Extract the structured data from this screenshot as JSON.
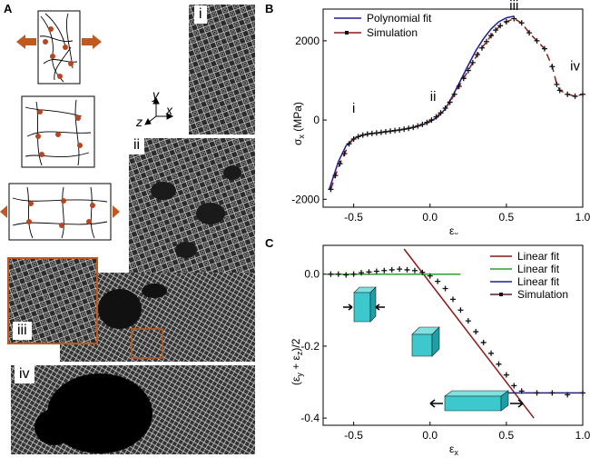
{
  "panels": {
    "a": "A",
    "b": "B",
    "c": "C"
  },
  "panel_a": {
    "stage_labels": [
      "i",
      "ii",
      "iii",
      "iv"
    ],
    "axes_triad": {
      "y": "y",
      "z": "z",
      "x": "x"
    }
  },
  "chart_data": [
    {
      "id": "B",
      "type": "line",
      "ylabel": "σ",
      "ylabel_sub": "x",
      "ylabel_unit": "(MPa)",
      "xlabel": "ε",
      "xlabel_sub": "x",
      "xlim": [
        -0.7,
        1.0
      ],
      "ylim": [
        -2200,
        2800
      ],
      "xticks": [
        "-0.5",
        "0.0",
        "0.5",
        "1.0"
      ],
      "xtick_values": [
        -0.5,
        0.0,
        0.5,
        1.0
      ],
      "yticks": [
        "-2000",
        "0",
        "2000"
      ],
      "ytick_values": [
        -2000,
        0,
        2000
      ],
      "annotations": [
        {
          "text": "i",
          "x": -0.5,
          "y": 180
        },
        {
          "text": "ii",
          "x": 0.02,
          "y": 480
        },
        {
          "text": "iii",
          "x": 0.55,
          "y": 2780
        },
        {
          "text": "iv",
          "x": 0.95,
          "y": 1250
        }
      ],
      "legend": [
        "Polynomial fit",
        "Simulation"
      ],
      "colors": {
        "fit": "#1f1f8f",
        "sim": "#8b1a1a"
      },
      "series": [
        {
          "name": "Polynomial fit",
          "x": [
            -0.66,
            -0.6,
            -0.55,
            -0.5,
            -0.45,
            -0.4,
            -0.35,
            -0.3,
            -0.25,
            -0.2,
            -0.15,
            -0.1,
            -0.05,
            0.0,
            0.05,
            0.1,
            0.15,
            0.2,
            0.25,
            0.3,
            0.35,
            0.4,
            0.45,
            0.5,
            0.55
          ],
          "y": [
            -1750,
            -1050,
            -650,
            -470,
            -390,
            -350,
            -330,
            -300,
            -280,
            -250,
            -220,
            -180,
            -120,
            -40,
            80,
            280,
            620,
            1000,
            1380,
            1750,
            2050,
            2300,
            2480,
            2580,
            2620
          ]
        },
        {
          "name": "Simulation",
          "x": [
            -0.65,
            -0.62,
            -0.59,
            -0.56,
            -0.53,
            -0.5,
            -0.47,
            -0.44,
            -0.41,
            -0.38,
            -0.35,
            -0.32,
            -0.29,
            -0.26,
            -0.23,
            -0.2,
            -0.17,
            -0.14,
            -0.11,
            -0.08,
            -0.05,
            -0.02,
            0.01,
            0.04,
            0.07,
            0.1,
            0.13,
            0.16,
            0.19,
            0.22,
            0.25,
            0.28,
            0.31,
            0.34,
            0.37,
            0.4,
            0.43,
            0.46,
            0.5,
            0.55,
            0.6,
            0.65,
            0.7,
            0.75,
            0.8,
            0.83,
            0.85,
            0.9,
            0.95,
            1.0
          ],
          "y": [
            -1750,
            -1400,
            -1100,
            -850,
            -600,
            -480,
            -420,
            -380,
            -355,
            -340,
            -325,
            -310,
            -295,
            -280,
            -265,
            -250,
            -230,
            -210,
            -185,
            -150,
            -110,
            -60,
            0,
            80,
            180,
            300,
            450,
            650,
            850,
            1050,
            1250,
            1450,
            1650,
            1820,
            1980,
            2130,
            2270,
            2380,
            2480,
            2560,
            2450,
            2200,
            2000,
            1800,
            1350,
            900,
            750,
            650,
            600,
            650
          ]
        }
      ]
    },
    {
      "id": "C",
      "type": "line",
      "ylabel": "(ε",
      "ylabel_full": "(εy + εz)/2",
      "xlabel": "ε",
      "xlabel_sub": "x",
      "xlim": [
        -0.7,
        1.0
      ],
      "ylim": [
        -0.42,
        0.08
      ],
      "xticks": [
        "-0.5",
        "0.0",
        "0.5",
        "1.0"
      ],
      "xtick_values": [
        -0.5,
        0.0,
        0.5,
        1.0
      ],
      "yticks": [
        "0.0",
        "-0.2",
        "-0.4"
      ],
      "ytick_values": [
        0.0,
        -0.2,
        -0.4
      ],
      "legend": [
        "Linear fit",
        "Linear fit",
        "Linear fit",
        "Simulation"
      ],
      "colors": {
        "fit1": "#8b1a1a",
        "fit2": "#2ca02c",
        "fit3": "#1f1f8f",
        "sim": "#5a1a2a"
      },
      "series": [
        {
          "name": "Linear fit",
          "x": [
            -0.17,
            0.68
          ],
          "y": [
            0.07,
            -0.4
          ]
        },
        {
          "name": "Linear fit",
          "x": [
            -0.68,
            0.2
          ],
          "y": [
            0.0,
            0.0
          ]
        },
        {
          "name": "Linear fit",
          "x": [
            0.4,
            1.0
          ],
          "y": [
            -0.33,
            -0.33
          ]
        },
        {
          "name": "Simulation",
          "x": [
            -0.65,
            -0.6,
            -0.55,
            -0.5,
            -0.45,
            -0.4,
            -0.35,
            -0.3,
            -0.25,
            -0.2,
            -0.15,
            -0.1,
            -0.05,
            0.0,
            0.05,
            0.1,
            0.15,
            0.2,
            0.25,
            0.3,
            0.35,
            0.4,
            0.45,
            0.5,
            0.55,
            0.6,
            0.7,
            0.8,
            0.9,
            1.0
          ],
          "y": [
            0.0,
            0.0,
            -0.002,
            0.0,
            0.004,
            0.006,
            0.008,
            0.01,
            0.012,
            0.014,
            0.012,
            0.01,
            0.005,
            -0.005,
            -0.02,
            -0.04,
            -0.07,
            -0.1,
            -0.13,
            -0.16,
            -0.19,
            -0.22,
            -0.25,
            -0.28,
            -0.31,
            -0.325,
            -0.33,
            -0.33,
            -0.335,
            -0.33
          ]
        }
      ]
    }
  ]
}
